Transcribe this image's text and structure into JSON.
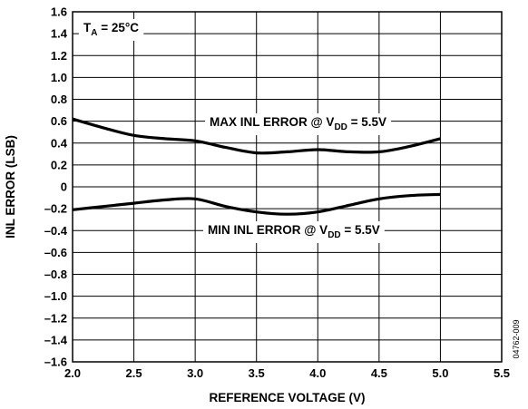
{
  "chart_data": {
    "type": "line",
    "xlabel": "REFERENCE VOLTAGE (V)",
    "ylabel": "INL ERROR (LSB)",
    "xlim": [
      2.0,
      5.5
    ],
    "ylim": [
      -1.6,
      1.6
    ],
    "x_ticks": [
      "2.0",
      "2.5",
      "3.0",
      "3.5",
      "4.0",
      "4.5",
      "5.0",
      "5.5"
    ],
    "y_ticks": [
      "1.6",
      "1.4",
      "1.2",
      "1.0",
      "0.8",
      "0.6",
      "0.4",
      "0.2",
      "0",
      "–0.2",
      "–0.4",
      "–0.6",
      "–0.8",
      "–1.0",
      "–1.2",
      "–1.4",
      "–1.6"
    ],
    "grid": true,
    "condition": {
      "main": "T",
      "sub": "A",
      "rest": " = 25°C"
    },
    "figure_code": "04762-009",
    "series": [
      {
        "label": {
          "main": "MAX INL ERROR @ V",
          "sub": "DD",
          "rest": " = 5.5V"
        },
        "x": [
          2.0,
          2.25,
          2.5,
          2.75,
          3.0,
          3.25,
          3.5,
          3.75,
          4.0,
          4.25,
          4.5,
          4.75,
          5.0
        ],
        "y": [
          0.62,
          0.54,
          0.47,
          0.44,
          0.42,
          0.36,
          0.31,
          0.32,
          0.34,
          0.32,
          0.32,
          0.37,
          0.44
        ]
      },
      {
        "label": {
          "main": "MIN INL ERROR @ V",
          "sub": "DD",
          "rest": " = 5.5V"
        },
        "x": [
          2.0,
          2.25,
          2.5,
          2.75,
          3.0,
          3.25,
          3.5,
          3.75,
          4.0,
          4.25,
          4.5,
          4.75,
          5.0
        ],
        "y": [
          -0.21,
          -0.18,
          -0.15,
          -0.12,
          -0.11,
          -0.18,
          -0.23,
          -0.25,
          -0.23,
          -0.17,
          -0.11,
          -0.08,
          -0.07
        ]
      }
    ]
  }
}
